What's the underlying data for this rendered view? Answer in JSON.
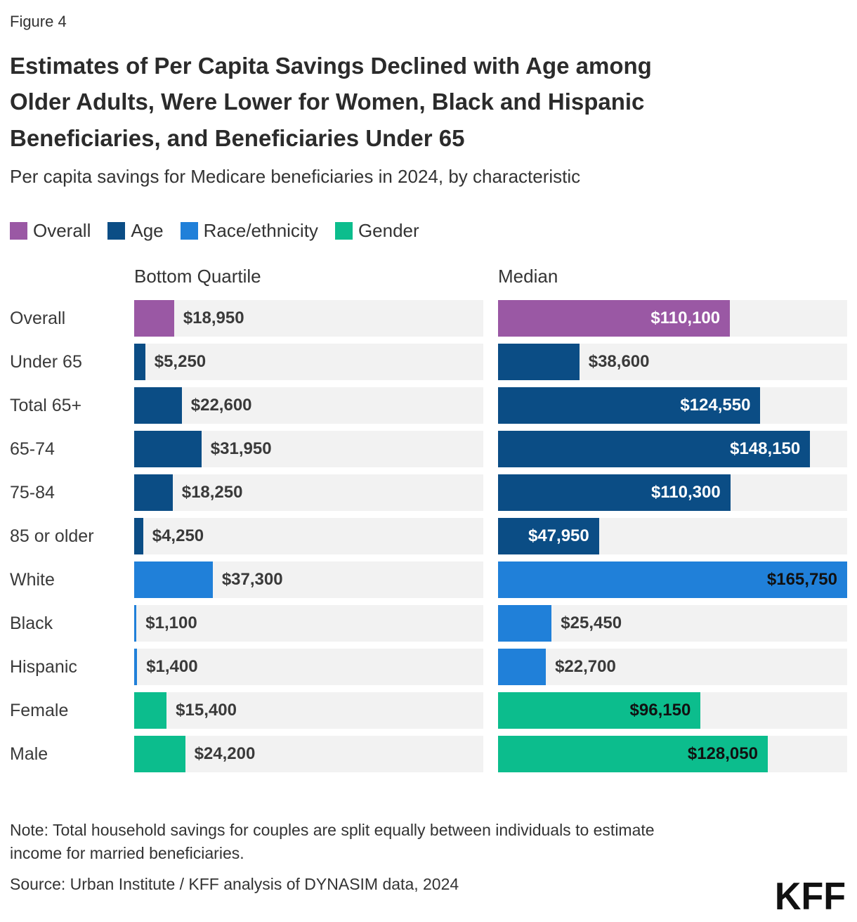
{
  "figure_label": "Figure 4",
  "title": "Estimates of Per Capita Savings Declined with Age among Older Adults, Were Lower for Women, Black and Hispanic Beneficiaries, and Beneficiaries Under 65",
  "title_lines": [
    "Estimates of Per Capita Savings Declined with Age among",
    "Older Adults, Were Lower for Women, Black and Hispanic",
    "Beneficiaries, and Beneficiaries Under 65"
  ],
  "subtitle": "Per capita savings for Medicare beneficiaries in 2024, by characteristic",
  "legend": [
    {
      "label": "Overall",
      "color": "#9a58a4"
    },
    {
      "label": "Age",
      "color": "#0b4d85"
    },
    {
      "label": "Race/ethnicity",
      "color": "#2080d9"
    },
    {
      "label": "Gender",
      "color": "#0cbd8d"
    }
  ],
  "columns": [
    "Bottom Quartile",
    "Median"
  ],
  "chart_data": {
    "type": "bar",
    "orientation": "horizontal",
    "title": "Estimates of Per Capita Savings Declined with Age among Older Adults, Were Lower for Women, Black and Hispanic Beneficiaries, and Beneficiaries Under 65",
    "subtitle": "Per capita savings for Medicare beneficiaries in 2024, by characteristic",
    "panels": [
      "Bottom Quartile",
      "Median"
    ],
    "xlim": [
      0,
      165750
    ],
    "grid": false,
    "legend_position": "top",
    "categories": [
      "Overall",
      "Under 65",
      "Total 65+",
      "65-74",
      "75-84",
      "85 or older",
      "White",
      "Black",
      "Hispanic",
      "Female",
      "Male"
    ],
    "category_groups": [
      "Overall",
      "Age",
      "Age",
      "Age",
      "Age",
      "Age",
      "Race/ethnicity",
      "Race/ethnicity",
      "Race/ethnicity",
      "Gender",
      "Gender"
    ],
    "series": [
      {
        "name": "Bottom Quartile",
        "values": [
          18950,
          5250,
          22600,
          31950,
          18250,
          4250,
          37300,
          1100,
          1400,
          15400,
          24200
        ]
      },
      {
        "name": "Median",
        "values": [
          110100,
          38600,
          124550,
          148150,
          110300,
          47950,
          165750,
          25450,
          22700,
          96150,
          128050
        ]
      }
    ],
    "rows": [
      {
        "label": "Overall",
        "group": "Overall",
        "bottom_quartile": {
          "value": 18950,
          "label": "$18,950",
          "label_style": "outside"
        },
        "median": {
          "value": 110100,
          "label": "$110,100",
          "label_style": "inside-light"
        }
      },
      {
        "label": "Under 65",
        "group": "Age",
        "bottom_quartile": {
          "value": 5250,
          "label": "$5,250",
          "label_style": "outside"
        },
        "median": {
          "value": 38600,
          "label": "$38,600",
          "label_style": "outside"
        }
      },
      {
        "label": "Total 65+",
        "group": "Age",
        "bottom_quartile": {
          "value": 22600,
          "label": "$22,600",
          "label_style": "outside"
        },
        "median": {
          "value": 124550,
          "label": "$124,550",
          "label_style": "inside-light"
        }
      },
      {
        "label": "65-74",
        "group": "Age",
        "bottom_quartile": {
          "value": 31950,
          "label": "$31,950",
          "label_style": "outside"
        },
        "median": {
          "value": 148150,
          "label": "$148,150",
          "label_style": "inside-light"
        }
      },
      {
        "label": "75-84",
        "group": "Age",
        "bottom_quartile": {
          "value": 18250,
          "label": "$18,250",
          "label_style": "outside"
        },
        "median": {
          "value": 110300,
          "label": "$110,300",
          "label_style": "inside-light"
        }
      },
      {
        "label": "85 or older",
        "group": "Age",
        "bottom_quartile": {
          "value": 4250,
          "label": "$4,250",
          "label_style": "outside"
        },
        "median": {
          "value": 47950,
          "label": "$47,950",
          "label_style": "inside-light"
        }
      },
      {
        "label": "White",
        "group": "Race/ethnicity",
        "bottom_quartile": {
          "value": 37300,
          "label": "$37,300",
          "label_style": "outside"
        },
        "median": {
          "value": 165750,
          "label": "$165,750",
          "label_style": "inside-dark"
        }
      },
      {
        "label": "Black",
        "group": "Race/ethnicity",
        "bottom_quartile": {
          "value": 1100,
          "label": "$1,100",
          "label_style": "outside"
        },
        "median": {
          "value": 25450,
          "label": "$25,450",
          "label_style": "outside"
        }
      },
      {
        "label": "Hispanic",
        "group": "Race/ethnicity",
        "bottom_quartile": {
          "value": 1400,
          "label": "$1,400",
          "label_style": "outside"
        },
        "median": {
          "value": 22700,
          "label": "$22,700",
          "label_style": "outside"
        }
      },
      {
        "label": "Female",
        "group": "Gender",
        "bottom_quartile": {
          "value": 15400,
          "label": "$15,400",
          "label_style": "outside"
        },
        "median": {
          "value": 96150,
          "label": "$96,150",
          "label_style": "inside-dark"
        }
      },
      {
        "label": "Male",
        "group": "Gender",
        "bottom_quartile": {
          "value": 24200,
          "label": "$24,200",
          "label_style": "outside"
        },
        "median": {
          "value": 128050,
          "label": "$128,050",
          "label_style": "inside-dark"
        }
      }
    ]
  },
  "note": "Note: Total household savings for couples are split equally between individuals to estimate income for married beneficiaries.",
  "note_lines": [
    "Note: Total household savings for couples are split equally between individuals to estimate",
    "income for married beneficiaries."
  ],
  "source": "Source: Urban Institute / KFF analysis of DYNASIM data, 2024",
  "logo": "KFF",
  "colors": {
    "track": "#f2f2f2",
    "inside_light_text": "#ffffff",
    "inside_dark_text": "#111111",
    "outside_text": "#3a3a3a"
  }
}
